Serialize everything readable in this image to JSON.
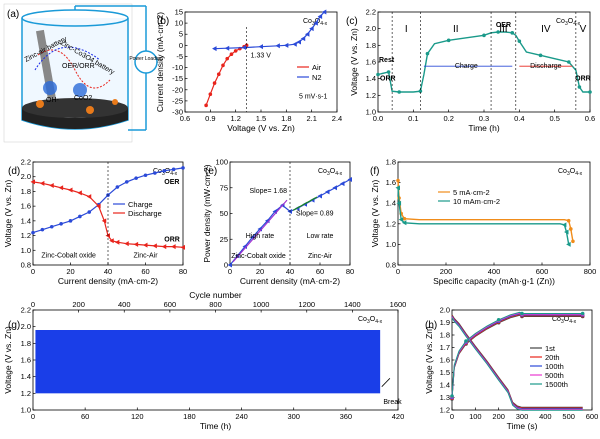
{
  "chart_data": [
    {
      "panel": "(a)",
      "type": "other",
      "labels": {
        "left_band": "Zinc-air battery",
        "right_band": "Zinc-Co3O4 battery",
        "oer_orr": "OER/ORR",
        "oh": "OH-",
        "co": "CoO2",
        "power": "Power Loading"
      }
    },
    {
      "panel": "(b)",
      "type": "line",
      "compound": "Co3O4-x",
      "xlabel": "Voltage (V vs. Zn)",
      "ylabel": "Current density (mA·cm-2)",
      "xlim": [
        0.6,
        2.4
      ],
      "ylim": [
        -30,
        15
      ],
      "xticks": [
        "0.6",
        "0.9",
        "1.2",
        "1.5",
        "1.8",
        "2.1",
        "2.4"
      ],
      "yticks": [
        "-30",
        "-25",
        "-20",
        "-15",
        "-10",
        "-5",
        "0",
        "5",
        "10",
        "15"
      ],
      "annotation": "1.33 V",
      "note": "5 mV·s-1",
      "series": [
        {
          "name": "Air",
          "color": "#e8241c",
          "x": [
            0.85,
            0.9,
            0.95,
            1.0,
            1.05,
            1.1,
            1.15,
            1.2,
            1.25,
            1.3,
            1.33
          ],
          "y": [
            -27,
            -22,
            -17,
            -13,
            -9,
            -6,
            -4,
            -2.5,
            -1.5,
            -0.6,
            0
          ]
        },
        {
          "name": "N2",
          "color": "#2b4ad8",
          "x": [
            0.95,
            1.1,
            1.3,
            1.5,
            1.7,
            1.8,
            1.9,
            1.95,
            2.0,
            2.05,
            2.1,
            2.15,
            2.2,
            2.25
          ],
          "y": [
            -1.5,
            -1.3,
            -1.0,
            -0.6,
            -0.2,
            0,
            0.5,
            1.5,
            3,
            5,
            7.5,
            10,
            13,
            15
          ]
        }
      ]
    },
    {
      "panel": "(c)",
      "type": "line",
      "compound": "Co3O4-x",
      "xlabel": "Time (h)",
      "ylabel": "Voltage (V vs. Zn)",
      "xlim": [
        0,
        0.6
      ],
      "ylim": [
        1.0,
        2.2
      ],
      "xticks": [
        "0.0",
        "0.1",
        "0.2",
        "0.3",
        "0.4",
        "0.5",
        "0.6"
      ],
      "yticks": [
        "1.0",
        "1.2",
        "1.4",
        "1.6",
        "1.8",
        "2.0",
        "2.2"
      ],
      "regions": [
        "I",
        "II",
        "III",
        "IV",
        "V"
      ],
      "labels": {
        "rest": "Rest",
        "orr_left": "ORR",
        "oer": "OER",
        "orr_right": "ORR",
        "charge": "Charge",
        "discharge": "Discharge"
      },
      "series": [
        {
          "name": "voltage",
          "color": "#1a9a8a",
          "x": [
            0.0,
            0.02,
            0.03,
            0.04,
            0.06,
            0.1,
            0.12,
            0.13,
            0.14,
            0.16,
            0.2,
            0.25,
            0.3,
            0.32,
            0.34,
            0.36,
            0.38,
            0.39,
            0.4,
            0.42,
            0.46,
            0.5,
            0.54,
            0.56,
            0.57,
            0.58,
            0.6
          ],
          "y": [
            1.45,
            1.47,
            1.48,
            1.25,
            1.24,
            1.24,
            1.25,
            1.45,
            1.7,
            1.82,
            1.86,
            1.89,
            1.92,
            1.95,
            1.96,
            1.96,
            1.95,
            1.92,
            1.85,
            1.72,
            1.68,
            1.64,
            1.6,
            1.5,
            1.3,
            1.24,
            1.24
          ]
        }
      ]
    },
    {
      "panel": "(d)",
      "type": "line",
      "compound": "Co3O4-x",
      "xlabel": "Current density (mA·cm-2)",
      "ylabel": "Voltage (V vs. Zn)",
      "xlim": [
        0,
        80
      ],
      "ylim": [
        0.8,
        2.2
      ],
      "xticks": [
        "0",
        "20",
        "40",
        "60",
        "80"
      ],
      "yticks": [
        "0.8",
        "1.0",
        "1.2",
        "1.4",
        "1.6",
        "1.8",
        "2.0",
        "2.2"
      ],
      "labels": {
        "oer": "OER",
        "orr": "ORR",
        "zinc_cobalt": "Zinc-Cobalt oxide",
        "zinc_air": "Zinc-Air"
      },
      "series": [
        {
          "name": "Charge",
          "color": "#2b4ad8",
          "x": [
            0,
            5,
            10,
            15,
            20,
            25,
            30,
            35,
            40,
            45,
            50,
            55,
            60,
            65,
            70,
            75,
            80
          ],
          "y": [
            1.24,
            1.28,
            1.32,
            1.36,
            1.4,
            1.46,
            1.52,
            1.62,
            1.75,
            1.86,
            1.93,
            1.98,
            2.02,
            2.05,
            2.08,
            2.1,
            2.12
          ]
        },
        {
          "name": "Discharge",
          "color": "#e8241c",
          "x": [
            0,
            5,
            10,
            15,
            20,
            25,
            30,
            35,
            38,
            40,
            42,
            45,
            50,
            55,
            60,
            65,
            70,
            75,
            80
          ],
          "y": [
            1.93,
            1.91,
            1.88,
            1.85,
            1.82,
            1.78,
            1.73,
            1.6,
            1.4,
            1.2,
            1.13,
            1.11,
            1.09,
            1.08,
            1.07,
            1.06,
            1.05,
            1.05,
            1.04
          ]
        }
      ]
    },
    {
      "panel": "(e)",
      "type": "line",
      "compound": "Co3O4-x",
      "xlabel": "Current density (mA·cm-2)",
      "ylabel": "Power density (mW·cm-2)",
      "xlim": [
        0,
        80
      ],
      "ylim": [
        0,
        100
      ],
      "xticks": [
        "0",
        "20",
        "40",
        "60",
        "80"
      ],
      "yticks": [
        "0",
        "25",
        "50",
        "75",
        "100"
      ],
      "labels": {
        "slope1": "Slope= 1.68",
        "slope2": "Slope= 0.89",
        "high": "High rate",
        "low": "Low rate",
        "zinc_cobalt": "Zinc-Cobalt oxide",
        "zinc_air": "Zinc-Air"
      },
      "series": [
        {
          "name": "power",
          "color": "#2b4ad8",
          "x": [
            0,
            5,
            10,
            15,
            20,
            25,
            30,
            35,
            40,
            45,
            50,
            55,
            60,
            65,
            70,
            75,
            80
          ],
          "y": [
            0,
            9,
            18,
            27,
            35,
            43,
            52,
            58,
            52,
            55,
            59,
            63,
            67,
            71,
            75,
            79,
            83
          ]
        }
      ]
    },
    {
      "panel": "(f)",
      "type": "line",
      "compound": "Co3O4-x",
      "xlabel": "Specific capacity (mAh·g-1 (Zn))",
      "ylabel": "Voltage (V vs. Zn)",
      "xlim": [
        0,
        900
      ],
      "ylim": [
        0.8,
        1.8
      ],
      "xticks": [
        "0",
        "200",
        "400",
        "600",
        "800"
      ],
      "yticks": [
        "0.8",
        "1.0",
        "1.2",
        "1.4",
        "1.6",
        "1.8"
      ],
      "series": [
        {
          "name": "5 mA·cm-2",
          "color": "#f08c1a",
          "x": [
            0,
            5,
            15,
            30,
            100,
            200,
            400,
            600,
            780,
            800,
            810,
            820
          ],
          "y": [
            1.62,
            1.45,
            1.3,
            1.25,
            1.24,
            1.24,
            1.24,
            1.24,
            1.24,
            1.23,
            1.15,
            1.03
          ]
        },
        {
          "name": "10 mAm·cm-2",
          "color": "#1a9a8a",
          "x": [
            0,
            5,
            15,
            30,
            100,
            200,
            400,
            600,
            760,
            780,
            790,
            800
          ],
          "y": [
            1.55,
            1.4,
            1.24,
            1.21,
            1.2,
            1.2,
            1.2,
            1.2,
            1.2,
            1.19,
            1.12,
            1.0
          ]
        }
      ]
    },
    {
      "panel": "(g)",
      "type": "area",
      "compound": "Co3O4-x",
      "xlabel": "Time (h)",
      "ylabel": "Voltage (V vs. Zn)",
      "top_xlabel": "Cycle number",
      "xlim": [
        0,
        450
      ],
      "ylim": [
        1.0,
        2.2
      ],
      "xticks": [
        "0",
        "60",
        "120",
        "180",
        "240",
        "300",
        "360",
        "420"
      ],
      "top_xticks": [
        "0",
        "200",
        "400",
        "600",
        "800",
        "1000",
        "1200",
        "1400",
        "1600"
      ],
      "yticks": [
        "1.0",
        "1.2",
        "1.4",
        "1.6",
        "1.8",
        "2.0",
        "2.2"
      ],
      "band": {
        "x": [
          3,
          428
        ],
        "y_low": 1.2,
        "y_high": 1.96,
        "color": "#1a3ee8"
      },
      "labels": {
        "break": "Break"
      }
    },
    {
      "panel": "(h)",
      "type": "line",
      "compound": "Co3O4-x",
      "xlabel": "Time (s)",
      "ylabel": "Voltage (V vs. Zn)",
      "xlim": [
        0,
        600
      ],
      "ylim": [
        1.2,
        2.0
      ],
      "xticks": [
        "0",
        "100",
        "200",
        "300",
        "400",
        "500",
        "600"
      ],
      "yticks": [
        "1.2",
        "1.3",
        "1.4",
        "1.5",
        "1.6",
        "1.7",
        "1.8",
        "1.9",
        "2.0"
      ],
      "series": [
        {
          "name": "1st",
          "color": "#444444"
        },
        {
          "name": "20th",
          "color": "#e8241c"
        },
        {
          "name": "100th",
          "color": "#2b4ad8"
        },
        {
          "name": "500th",
          "color": "#e83ad0"
        },
        {
          "name": "1500th",
          "color": "#1a9a8a"
        }
      ],
      "charge": {
        "x": [
          0,
          10,
          30,
          60,
          100,
          150,
          200,
          250,
          290,
          300,
          400,
          500,
          560
        ],
        "y": [
          1.3,
          1.55,
          1.66,
          1.74,
          1.8,
          1.86,
          1.91,
          1.95,
          1.97,
          1.96,
          1.96,
          1.96,
          1.96
        ]
      },
      "discharge": {
        "x": [
          0,
          10,
          30,
          60,
          100,
          150,
          200,
          240,
          260,
          280,
          300,
          400,
          560
        ],
        "y": [
          1.95,
          1.92,
          1.88,
          1.8,
          1.7,
          1.58,
          1.45,
          1.35,
          1.25,
          1.22,
          1.21,
          1.21,
          1.21
        ]
      }
    }
  ]
}
